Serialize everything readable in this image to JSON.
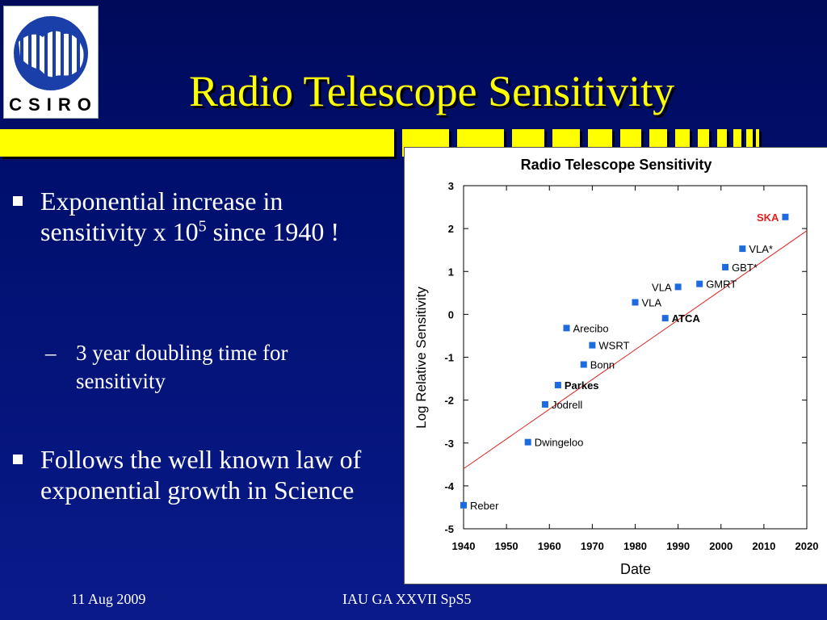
{
  "logo": {
    "text": "CSIRO"
  },
  "slide": {
    "title": "Radio Telescope Sensitivity",
    "bullet1": {
      "text": "Exponential increase in sensitivity x 10",
      "exponent": "5",
      "suffix": " since 1940 !"
    },
    "subbullet": {
      "dash": "–",
      "text": "3 year doubling time for sensitivity"
    },
    "bullet2": {
      "text": "Follows the well known law of exponential growth in Science"
    }
  },
  "footer": {
    "date": "11 Aug 2009",
    "conference": "IAU GA XXVII SpS5"
  },
  "chart_data": {
    "type": "scatter",
    "title": "Radio Telescope Sensitivity",
    "xlabel": "Date",
    "ylabel": "Log Relative Sensitivity",
    "xlim": [
      1940,
      2020
    ],
    "ylim": [
      -5,
      3
    ],
    "x_ticks": [
      "1940",
      "1950",
      "1960",
      "1970",
      "1980",
      "1990",
      "2000",
      "2010",
      "2020"
    ],
    "y_ticks": [
      "3",
      "2",
      "1",
      "0",
      "-1",
      "-2",
      "-3",
      "-4",
      "-5"
    ],
    "grid": false,
    "point_color": "#1e6be0",
    "trend_color": "#e02020",
    "trend_line": {
      "x": [
        1940,
        2020
      ],
      "y": [
        -3.6,
        1.95
      ]
    },
    "points": [
      {
        "label": "Reber",
        "x": 1940,
        "y": -4.45,
        "bold": false,
        "color": "#000000",
        "label_side": "right"
      },
      {
        "label": "Dwingeloo",
        "x": 1955,
        "y": -2.98,
        "bold": false,
        "color": "#000000",
        "label_side": "right"
      },
      {
        "label": "Jodrell",
        "x": 1959,
        "y": -2.1,
        "bold": false,
        "color": "#000000",
        "label_side": "right"
      },
      {
        "label": "Parkes",
        "x": 1962,
        "y": -1.65,
        "bold": true,
        "color": "#000000",
        "label_side": "right"
      },
      {
        "label": "Bonn",
        "x": 1968,
        "y": -1.17,
        "bold": false,
        "color": "#000000",
        "label_side": "right"
      },
      {
        "label": "WSRT",
        "x": 1970,
        "y": -0.72,
        "bold": false,
        "color": "#000000",
        "label_side": "right"
      },
      {
        "label": "Arecibo",
        "x": 1964,
        "y": -0.32,
        "bold": false,
        "color": "#000000",
        "label_side": "right"
      },
      {
        "label": "VLA",
        "x": 1980,
        "y": 0.28,
        "bold": false,
        "color": "#000000",
        "label_side": "right"
      },
      {
        "label": "ATCA",
        "x": 1987,
        "y": -0.09,
        "bold": true,
        "color": "#000000",
        "label_side": "right"
      },
      {
        "label": "VLA",
        "x": 1990,
        "y": 0.64,
        "bold": false,
        "color": "#000000",
        "label_side": "left"
      },
      {
        "label": "GMRT",
        "x": 1995,
        "y": 0.71,
        "bold": false,
        "color": "#000000",
        "label_side": "right"
      },
      {
        "label": "GBT*",
        "x": 2001,
        "y": 1.1,
        "bold": false,
        "color": "#000000",
        "label_side": "right"
      },
      {
        "label": "VLA*",
        "x": 2005,
        "y": 1.53,
        "bold": false,
        "color": "#000000",
        "label_side": "right"
      },
      {
        "label": "SKA",
        "x": 2015,
        "y": 2.27,
        "bold": true,
        "color": "#e02020",
        "label_side": "left"
      }
    ]
  }
}
